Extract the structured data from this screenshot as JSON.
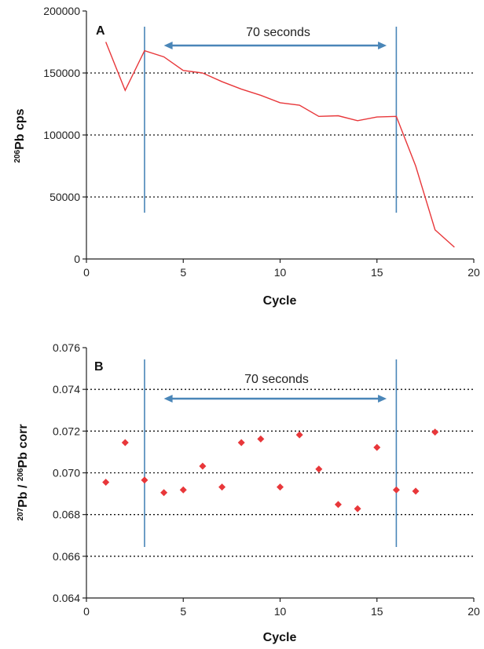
{
  "chart_data": [
    {
      "type": "line",
      "panel_label": "A",
      "annotation": "70 seconds",
      "xlabel": "Cycle",
      "ylabel_sup": "206",
      "ylabel_main": "Pb cps",
      "xlim": [
        0,
        20
      ],
      "ylim": [
        0,
        200000
      ],
      "xticks": [
        "0",
        "5",
        "10",
        "15",
        "20"
      ],
      "yticks": [
        "0",
        "50000",
        "100000",
        "150000",
        "200000"
      ],
      "gridlines": [
        50000,
        100000,
        150000
      ],
      "marker_lines": [
        3,
        16
      ],
      "arrow_range": [
        4,
        15.5
      ],
      "series_color": "#e8373a",
      "marker_color": "#4a86b8",
      "x": [
        1,
        2,
        3,
        4,
        5,
        6,
        7,
        8,
        9,
        10,
        11,
        12,
        13,
        14,
        15,
        16,
        17,
        18,
        19
      ],
      "y": [
        175000,
        136000,
        168000,
        163000,
        152000,
        150000,
        143000,
        137000,
        132000,
        126000,
        124000,
        115000,
        115500,
        111500,
        114500,
        115000,
        75000,
        23500,
        9500
      ]
    },
    {
      "type": "scatter",
      "panel_label": "B",
      "annotation": "70 seconds",
      "xlabel": "Cycle",
      "ylabel_sup1": "207",
      "ylabel_mid": "Pb / ",
      "ylabel_sup2": "206",
      "ylabel_end": "Pb corr",
      "xlim": [
        0,
        20
      ],
      "ylim": [
        0.064,
        0.076
      ],
      "xticks": [
        "0",
        "5",
        "10",
        "15",
        "20"
      ],
      "yticks": [
        "0.064",
        "0.066",
        "0.068",
        "0.070",
        "0.072",
        "0.074",
        "0.076"
      ],
      "gridlines": [
        0.066,
        0.068,
        0.07,
        0.072,
        0.074
      ],
      "marker_lines": [
        3,
        16
      ],
      "arrow_range": [
        4,
        15.5
      ],
      "series_color": "#e8373a",
      "marker_color": "#4a86b8",
      "x": [
        1,
        2,
        3,
        4,
        5,
        6,
        7,
        8,
        9,
        10,
        11,
        12,
        13,
        14,
        15,
        16,
        17,
        18
      ],
      "y": [
        0.06955,
        0.07145,
        0.06965,
        0.06905,
        0.06918,
        0.07032,
        0.06932,
        0.07145,
        0.07162,
        0.06932,
        0.07182,
        0.07018,
        0.06848,
        0.06828,
        0.07122,
        0.06918,
        0.06912,
        0.07195
      ]
    }
  ]
}
